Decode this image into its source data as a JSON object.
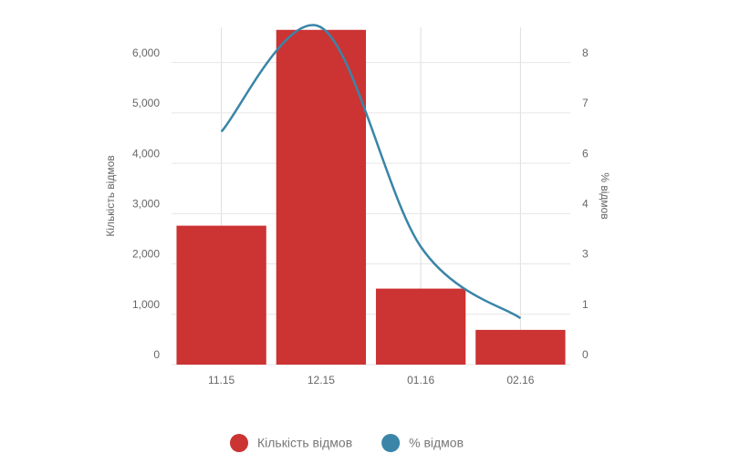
{
  "chart_data": {
    "type": "bar-line",
    "categories": [
      "11.15",
      "12.15",
      "01.16",
      "02.16"
    ],
    "series": [
      {
        "name": "Кількість відмов",
        "color": "#cc3333",
        "type": "bar",
        "values": [
          2760,
          6650,
          1510,
          690
        ]
      },
      {
        "name": "% відмов",
        "color": "#3a85a8",
        "type": "line",
        "axis": "y2",
        "values": [
          6.48,
          9.38,
          3.28,
          1.29
        ]
      }
    ],
    "ylabel": "Кількість відмов",
    "y2label": "% відмов",
    "ylim": [
      0,
      6700
    ],
    "yticks": [
      0,
      {
        "value": 1000,
        "label": "1,000"
      },
      {
        "value": 2000,
        "label": "2,000"
      },
      {
        "value": 3000,
        "label": "3,000"
      },
      {
        "value": 4000,
        "label": "4,000"
      },
      {
        "value": 5000,
        "label": "5,000"
      },
      {
        "value": 6000,
        "label": "6,000"
      }
    ],
    "y2lim": [
      0,
      9.38
    ],
    "y2ticks": [
      0,
      {
        "value": 1.4,
        "label": "1"
      },
      {
        "value": 2.8,
        "label": "3"
      },
      {
        "value": 4.2,
        "label": "4"
      },
      {
        "value": 5.6,
        "label": "6"
      },
      {
        "value": 7,
        "label": "7"
      },
      {
        "value": 8.4,
        "label": "8"
      }
    ],
    "grid": true,
    "legend": "bottom"
  }
}
